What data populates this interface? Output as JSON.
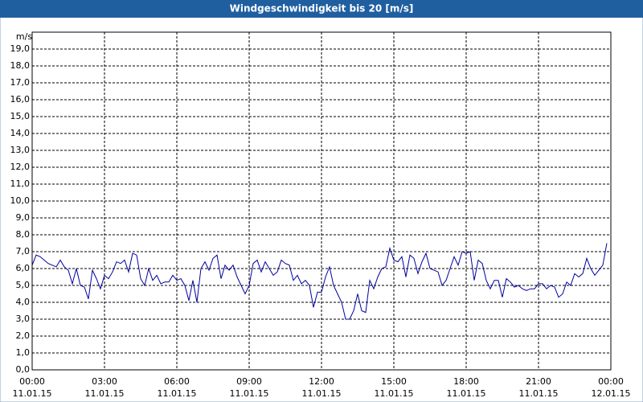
{
  "chart_data": {
    "type": "line",
    "title": "Windgeschwindigkeit bis 20 [m/s]",
    "y_label": "m/s",
    "x": [
      0,
      10,
      20,
      30,
      40,
      50,
      60,
      70,
      80,
      90,
      100,
      110,
      120,
      130,
      140,
      150,
      160,
      170,
      180,
      190,
      200,
      210,
      220,
      230,
      240,
      250,
      260,
      270,
      280,
      290,
      300,
      310,
      320,
      330,
      340,
      350,
      360,
      370,
      380,
      390,
      400,
      410,
      420,
      430,
      440,
      450,
      460,
      470,
      480,
      490,
      500,
      510,
      520,
      530,
      540,
      550,
      560,
      570,
      580,
      590,
      600,
      610,
      620,
      630,
      640,
      650,
      660,
      670,
      680,
      690,
      700,
      710,
      720,
      730,
      740,
      750,
      760,
      770,
      780,
      790,
      800,
      810,
      820,
      830,
      840,
      850,
      860,
      870,
      880,
      890,
      900,
      910,
      920,
      930,
      940,
      950,
      960,
      970,
      980,
      990,
      1000,
      1010,
      1020,
      1030,
      1040,
      1050,
      1060,
      1070,
      1080,
      1090,
      1100,
      1110,
      1120,
      1130,
      1140,
      1150,
      1160,
      1170,
      1180,
      1190,
      1200,
      1210,
      1220,
      1230,
      1240,
      1250,
      1260,
      1270,
      1280,
      1290,
      1300,
      1310,
      1320,
      1330,
      1340,
      1350,
      1360,
      1370,
      1380,
      1390,
      1400,
      1410,
      1420,
      1430
    ],
    "series": [
      {
        "color": "#0000a0",
        "values": [
          6.2,
          6.8,
          6.7,
          6.5,
          6.3,
          6.2,
          6.1,
          6.5,
          6.1,
          5.9,
          5.1,
          6.0,
          5.0,
          4.9,
          4.2,
          5.9,
          5.4,
          4.8,
          5.6,
          5.4,
          5.8,
          6.4,
          6.3,
          6.5,
          5.8,
          6.9,
          6.8,
          5.4,
          5.0,
          6.0,
          5.3,
          5.6,
          5.1,
          5.2,
          5.2,
          5.6,
          5.3,
          5.4,
          5.0,
          4.1,
          5.3,
          4.0,
          6.0,
          6.4,
          5.9,
          6.6,
          6.8,
          5.4,
          6.2,
          5.9,
          6.2,
          5.5,
          5.0,
          4.5,
          5.0,
          6.3,
          6.5,
          5.8,
          6.4,
          6.0,
          5.6,
          5.8,
          6.5,
          6.3,
          6.2,
          5.3,
          5.6,
          5.1,
          5.3,
          5.0,
          3.7,
          4.6,
          4.6,
          5.5,
          6.1,
          5.0,
          4.5,
          4.0,
          3.0,
          3.0,
          3.5,
          4.5,
          3.5,
          3.4,
          5.3,
          4.8,
          5.5,
          6.0,
          6.1,
          7.2,
          6.5,
          6.4,
          6.7,
          5.5,
          6.8,
          6.6,
          5.7,
          6.4,
          6.9,
          6.0,
          5.9,
          5.8,
          5.0,
          5.3,
          6.0,
          6.7,
          6.2,
          7.0,
          6.9,
          7.0,
          5.3,
          6.5,
          6.3,
          5.3,
          4.8,
          5.3,
          5.3,
          4.3,
          5.4,
          5.2,
          4.9,
          5.0,
          4.8,
          4.7,
          4.8,
          4.8,
          5.1,
          5.1,
          4.8,
          5.0,
          4.9,
          4.3,
          4.5,
          5.2,
          5.0,
          5.7,
          5.5,
          5.7,
          6.6,
          6.0,
          5.6,
          5.9,
          6.2,
          7.5
        ]
      }
    ],
    "xlim": [
      0,
      1440
    ],
    "xticks": [
      {
        "value": 0,
        "label": "00:00",
        "sublabel": "11.01.15"
      },
      {
        "value": 180,
        "label": "03:00",
        "sublabel": "11.01.15"
      },
      {
        "value": 360,
        "label": "06:00",
        "sublabel": "11.01.15"
      },
      {
        "value": 540,
        "label": "09:00",
        "sublabel": "11.01.15"
      },
      {
        "value": 720,
        "label": "12:00",
        "sublabel": "11.01.15"
      },
      {
        "value": 900,
        "label": "15:00",
        "sublabel": "11.01.15"
      },
      {
        "value": 1080,
        "label": "18:00",
        "sublabel": "11.01.15"
      },
      {
        "value": 1260,
        "label": "21:00",
        "sublabel": "11.01.15"
      },
      {
        "value": 1440,
        "label": "00:00",
        "sublabel": "12.01.15"
      }
    ],
    "ylim": [
      0,
      20
    ],
    "yticks": [
      {
        "value": 0,
        "label": "0,0"
      },
      {
        "value": 1,
        "label": "1,0"
      },
      {
        "value": 2,
        "label": "2,0"
      },
      {
        "value": 3,
        "label": "3,0"
      },
      {
        "value": 4,
        "label": "4,0"
      },
      {
        "value": 5,
        "label": "5,0"
      },
      {
        "value": 6,
        "label": "6,0"
      },
      {
        "value": 7,
        "label": "7,0"
      },
      {
        "value": 8,
        "label": "8,0"
      },
      {
        "value": 9,
        "label": "9,0"
      },
      {
        "value": 10,
        "label": "10,0"
      },
      {
        "value": 11,
        "label": "11,0"
      },
      {
        "value": 12,
        "label": "12,0"
      },
      {
        "value": 13,
        "label": "13,0"
      },
      {
        "value": 14,
        "label": "14,0"
      },
      {
        "value": 15,
        "label": "15,0"
      },
      {
        "value": 16,
        "label": "16,0"
      },
      {
        "value": 17,
        "label": "17,0"
      },
      {
        "value": 18,
        "label": "18,0"
      },
      {
        "value": 19,
        "label": "19,0"
      }
    ],
    "grid": true
  }
}
